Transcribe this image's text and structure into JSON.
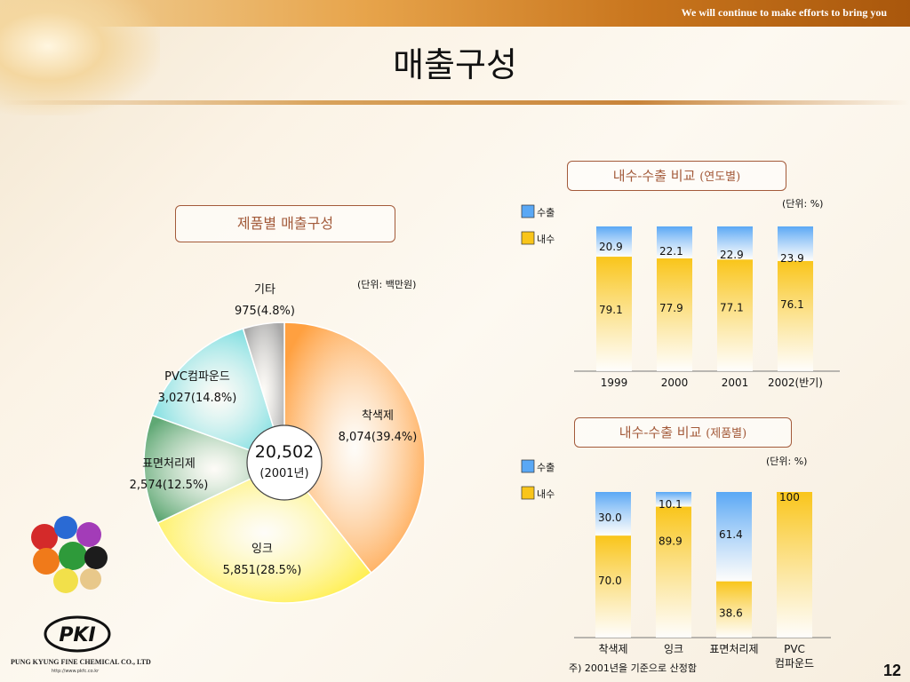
{
  "header": {
    "slogan": "We will continue to make efforts to bring you",
    "title": "매출구성"
  },
  "pie_section": {
    "label": "제품별 매출구성",
    "unit": "(단위: 백만원)",
    "center_total": "20,502",
    "center_year": "(2001년)"
  },
  "year_section": {
    "label_main": "내수-수출 비교",
    "label_sub": "(연도별)",
    "unit": "(단위: %)",
    "legend_export": "수출",
    "legend_domestic": "내수"
  },
  "product_section": {
    "label_main": "내수-수출 비교",
    "label_sub": "(제품별)",
    "unit": "(단위: %)",
    "legend_export": "수출",
    "legend_domestic": "내수",
    "note": "주) 2001년을 기준으로 산정함"
  },
  "footer": {
    "company": "PUNG KYUNG FINE CHEMICAL CO., LTD",
    "url": "http://www.pkfc.co.kr",
    "logo_text": "PKI",
    "page_number": "12"
  },
  "colors": {
    "export": "#5aa8f5",
    "domestic": "#f9c51a",
    "pie": [
      "#ffa040",
      "#ffee44",
      "#5fa874",
      "#64d8dc",
      "#a8a8a8"
    ]
  },
  "chart_data": [
    {
      "type": "pie",
      "title": "제품별 매출구성",
      "unit": "(단위: 백만원)",
      "total": "20,502",
      "slices": [
        {
          "label": "착색제",
          "value": 8074,
          "value_label": "8,074(39.4%)",
          "percent": 39.4
        },
        {
          "label": "잉크",
          "value": 5851,
          "value_label": "5,851(28.5%)",
          "percent": 28.5
        },
        {
          "label": "표면처리제",
          "value": 2574,
          "value_label": "2,574(12.5%)",
          "percent": 12.5
        },
        {
          "label": "PVC컴파운드",
          "value": 3027,
          "value_label": "3,027(14.8%)",
          "percent": 14.8
        },
        {
          "label": "기타",
          "value": 975,
          "value_label": "975(4.8%)",
          "percent": 4.8
        }
      ]
    },
    {
      "type": "bar",
      "stacked": true,
      "title": "내수-수출 비교 (연도별)",
      "unit": "(단위: %)",
      "categories": [
        "1999",
        "2000",
        "2001",
        "2002(반기)"
      ],
      "series": [
        {
          "name": "내수",
          "values": [
            79.1,
            77.9,
            77.1,
            76.1
          ],
          "labels": [
            "79.1",
            "77.9",
            "77.1",
            "76.1"
          ]
        },
        {
          "name": "수출",
          "values": [
            20.9,
            22.1,
            22.9,
            23.9
          ],
          "labels": [
            "20.9",
            "22.1",
            "22.9",
            "23.9"
          ]
        }
      ],
      "ylim": [
        0,
        100
      ],
      "legend": "top-left"
    },
    {
      "type": "bar",
      "stacked": true,
      "title": "내수-수출 비교 (제품별)",
      "unit": "(단위: %)",
      "categories": [
        "착색제",
        "잉크",
        "표면처리제",
        "PVC 컴파운드"
      ],
      "series": [
        {
          "name": "내수",
          "values": [
            70.0,
            89.9,
            38.6,
            100
          ],
          "labels": [
            "70.0",
            "89.9",
            "38.6",
            "100"
          ]
        },
        {
          "name": "수출",
          "values": [
            30.0,
            10.1,
            61.4,
            0
          ],
          "labels": [
            "30.0",
            "10.1",
            "61.4",
            ""
          ]
        }
      ],
      "ylim": [
        0,
        100
      ],
      "legend": "top-left"
    }
  ]
}
